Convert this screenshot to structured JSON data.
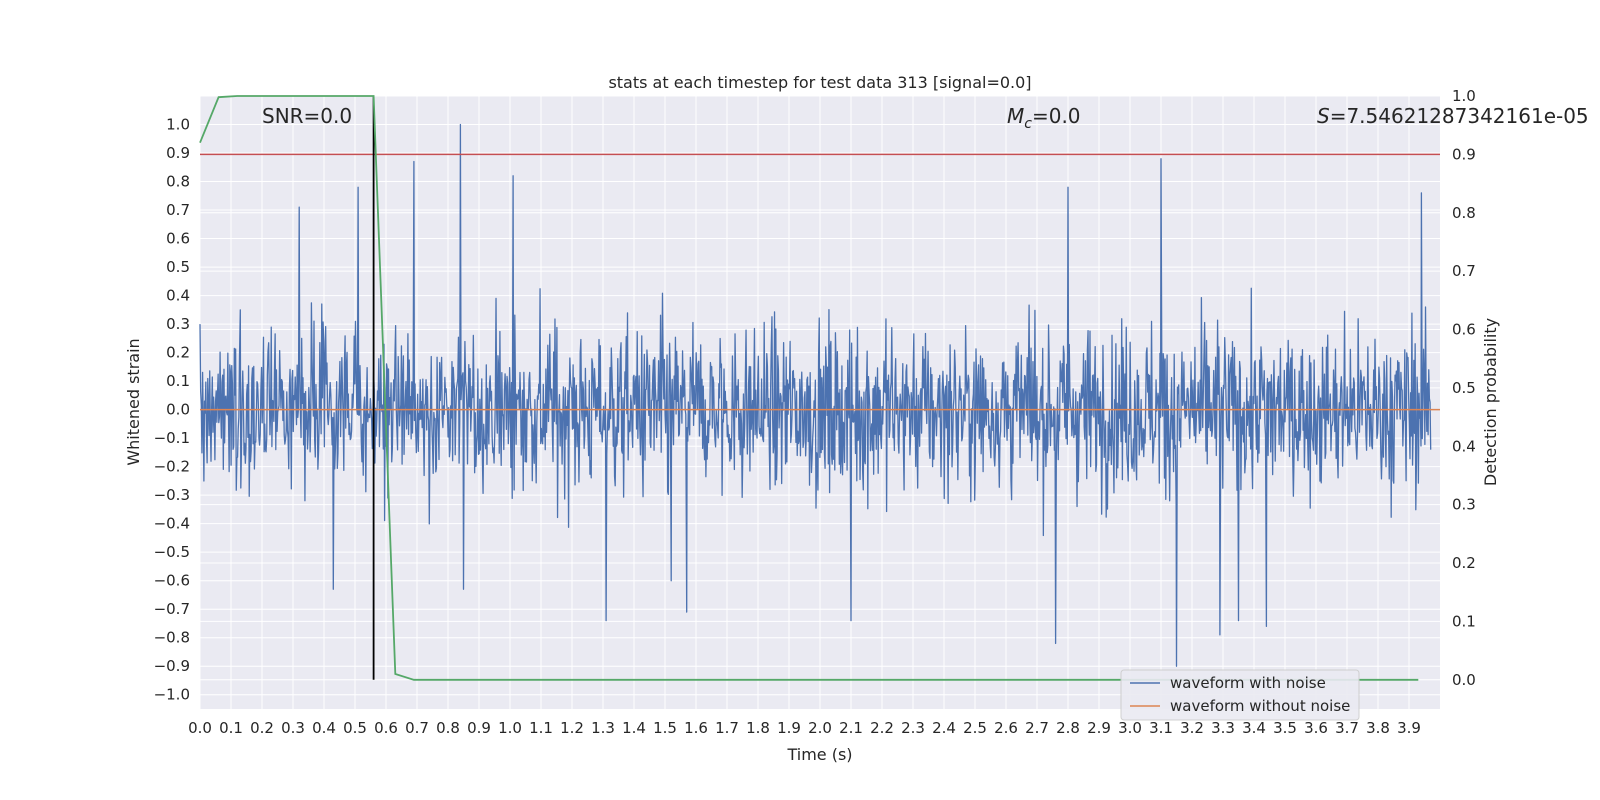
{
  "chart_data": {
    "type": "line",
    "title": "stats at each timestep for test data 313 [signal=0.0]",
    "xlabel": "Time (s)",
    "ylabel": "Whitened strain",
    "y2label": "Detection probability",
    "xlim": [
      0.0,
      4.0
    ],
    "ylim": [
      -1.05,
      1.1
    ],
    "y2lim": [
      -0.05,
      1.0
    ],
    "grid": true,
    "legend_position": "lower right",
    "xticks": [
      "0.0",
      "0.1",
      "0.2",
      "0.3",
      "0.4",
      "0.5",
      "0.6",
      "0.7",
      "0.8",
      "0.9",
      "1.0",
      "1.1",
      "1.2",
      "1.3",
      "1.4",
      "1.5",
      "1.6",
      "1.7",
      "1.8",
      "1.9",
      "2.0",
      "2.1",
      "2.2",
      "2.3",
      "2.4",
      "2.5",
      "2.6",
      "2.7",
      "2.8",
      "2.9",
      "3.0",
      "3.1",
      "3.2",
      "3.3",
      "3.4",
      "3.5",
      "3.6",
      "3.7",
      "3.8",
      "3.9"
    ],
    "yticks": [
      "1.0",
      "0.9",
      "0.8",
      "0.7",
      "0.6",
      "0.5",
      "0.4",
      "0.3",
      "0.2",
      "0.1",
      "0.0",
      "−0.1",
      "−0.2",
      "−0.3",
      "−0.4",
      "−0.5",
      "−0.6",
      "−0.7",
      "−0.8",
      "−0.9",
      "−1.0"
    ],
    "y2ticks": [
      "1.0",
      "0.9",
      "0.8",
      "0.7",
      "0.6",
      "0.5",
      "0.4",
      "0.3",
      "0.2",
      "0.1",
      "0.0"
    ],
    "annotations": {
      "snr": "SNR=0.0",
      "mc_symbol": "M",
      "mc_sub": "c",
      "mc_value": "=0.0",
      "s_symbol": "S",
      "s_value": "=7.54621287342161e-05"
    },
    "series": [
      {
        "name": "waveform with noise",
        "color": "#4c72b0",
        "axis": "left",
        "description_points": {
          "x": [
            0.0,
            0.13,
            0.32,
            0.43,
            0.51,
            0.69,
            0.84,
            0.85,
            1.01,
            1.31,
            1.52,
            1.57,
            2.1,
            2.76,
            2.8,
            3.1,
            3.15,
            3.29,
            3.35,
            3.44,
            3.94
          ],
          "y": [
            0.3,
            0.35,
            0.71,
            -0.63,
            0.78,
            0.87,
            1.0,
            -0.63,
            0.82,
            -0.74,
            -0.6,
            -0.71,
            -0.74,
            -0.82,
            0.78,
            0.88,
            -0.9,
            -0.79,
            -0.74,
            -0.76,
            0.76
          ]
        }
      },
      {
        "name": "waveform without noise",
        "color": "#dd8452",
        "axis": "left",
        "x": [
          0.0,
          4.0
        ],
        "y": [
          0.0,
          0.0
        ]
      },
      {
        "name": "",
        "color": "#55a868",
        "axis": "right",
        "x": [
          0.0,
          0.06,
          0.12,
          0.2,
          0.3,
          0.4,
          0.5,
          0.56,
          0.63,
          0.69,
          0.8,
          1.0,
          2.0,
          3.0,
          3.93
        ],
        "y": [
          0.92,
          0.998,
          1.0,
          1.0,
          1.0,
          1.0,
          1.0,
          1.0,
          0.01,
          0.0,
          0.0,
          0.0,
          0.0,
          0.0,
          0.0
        ]
      }
    ],
    "threshold_line": {
      "axis": "right",
      "y": 0.9,
      "color": "#c44e52"
    },
    "vertical_marker": {
      "x": 0.56,
      "y_from": 0.0,
      "y_to": 1.0,
      "color": "#000000"
    }
  },
  "colors": {
    "plot_bg": "#eaeaf2",
    "grid": "#ffffff",
    "text": "#262626"
  }
}
